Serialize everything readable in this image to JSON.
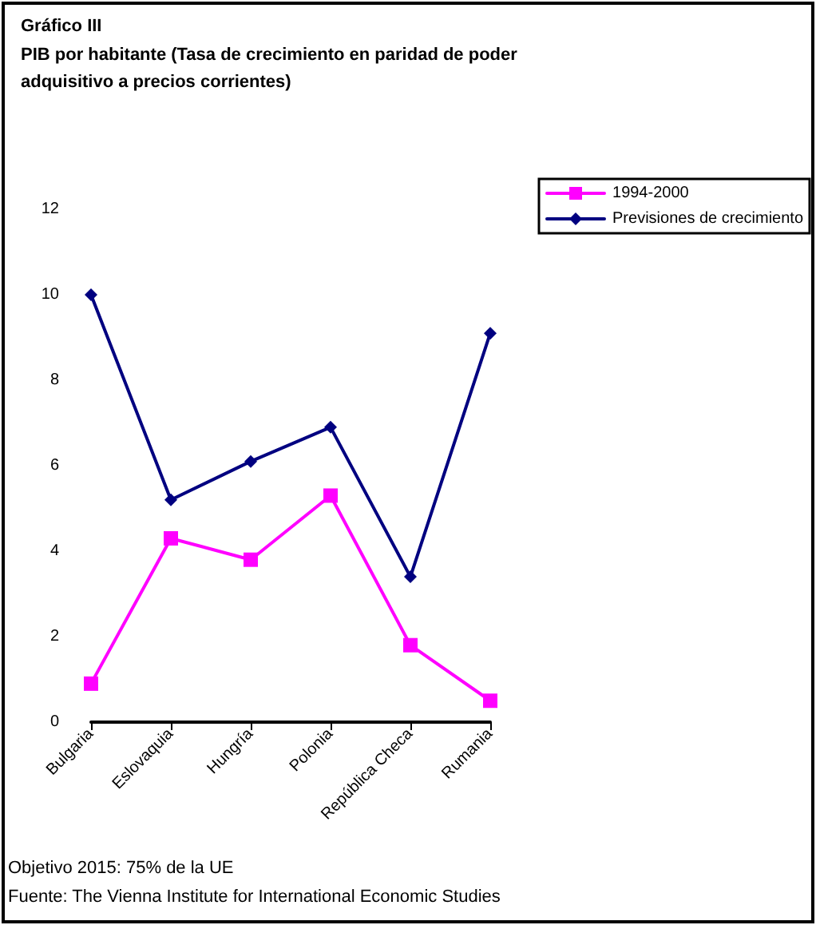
{
  "chart_data": {
    "type": "line",
    "title": "Gráfico III",
    "subtitle": "PIB por habitante (Tasa de crecimiento en paridad de poder adquisitivo a precios corrientes)",
    "categories": [
      "Bulgaria",
      "Eslovaquia",
      "Hungría",
      "Polonia",
      "República Checa",
      "Rumania"
    ],
    "series": [
      {
        "name": "1994-2000",
        "color": "#ff00ff",
        "marker": "square",
        "values": [
          0.9,
          4.3,
          3.8,
          5.3,
          1.8,
          0.5
        ]
      },
      {
        "name": "Previsiones de crecimiento",
        "color": "#000080",
        "marker": "diamond",
        "values": [
          10.0,
          5.2,
          6.1,
          6.9,
          3.4,
          9.1
        ]
      }
    ],
    "ylim": [
      0,
      12
    ],
    "yticks": [
      0,
      2,
      4,
      6,
      8,
      10,
      12
    ],
    "grid": false,
    "legend": "top right",
    "line_style": "solid",
    "annotations": [
      "Objetivo 2015: 75% de la UE",
      "Fuente: The Vienna Institute for International Economic Studies"
    ]
  }
}
